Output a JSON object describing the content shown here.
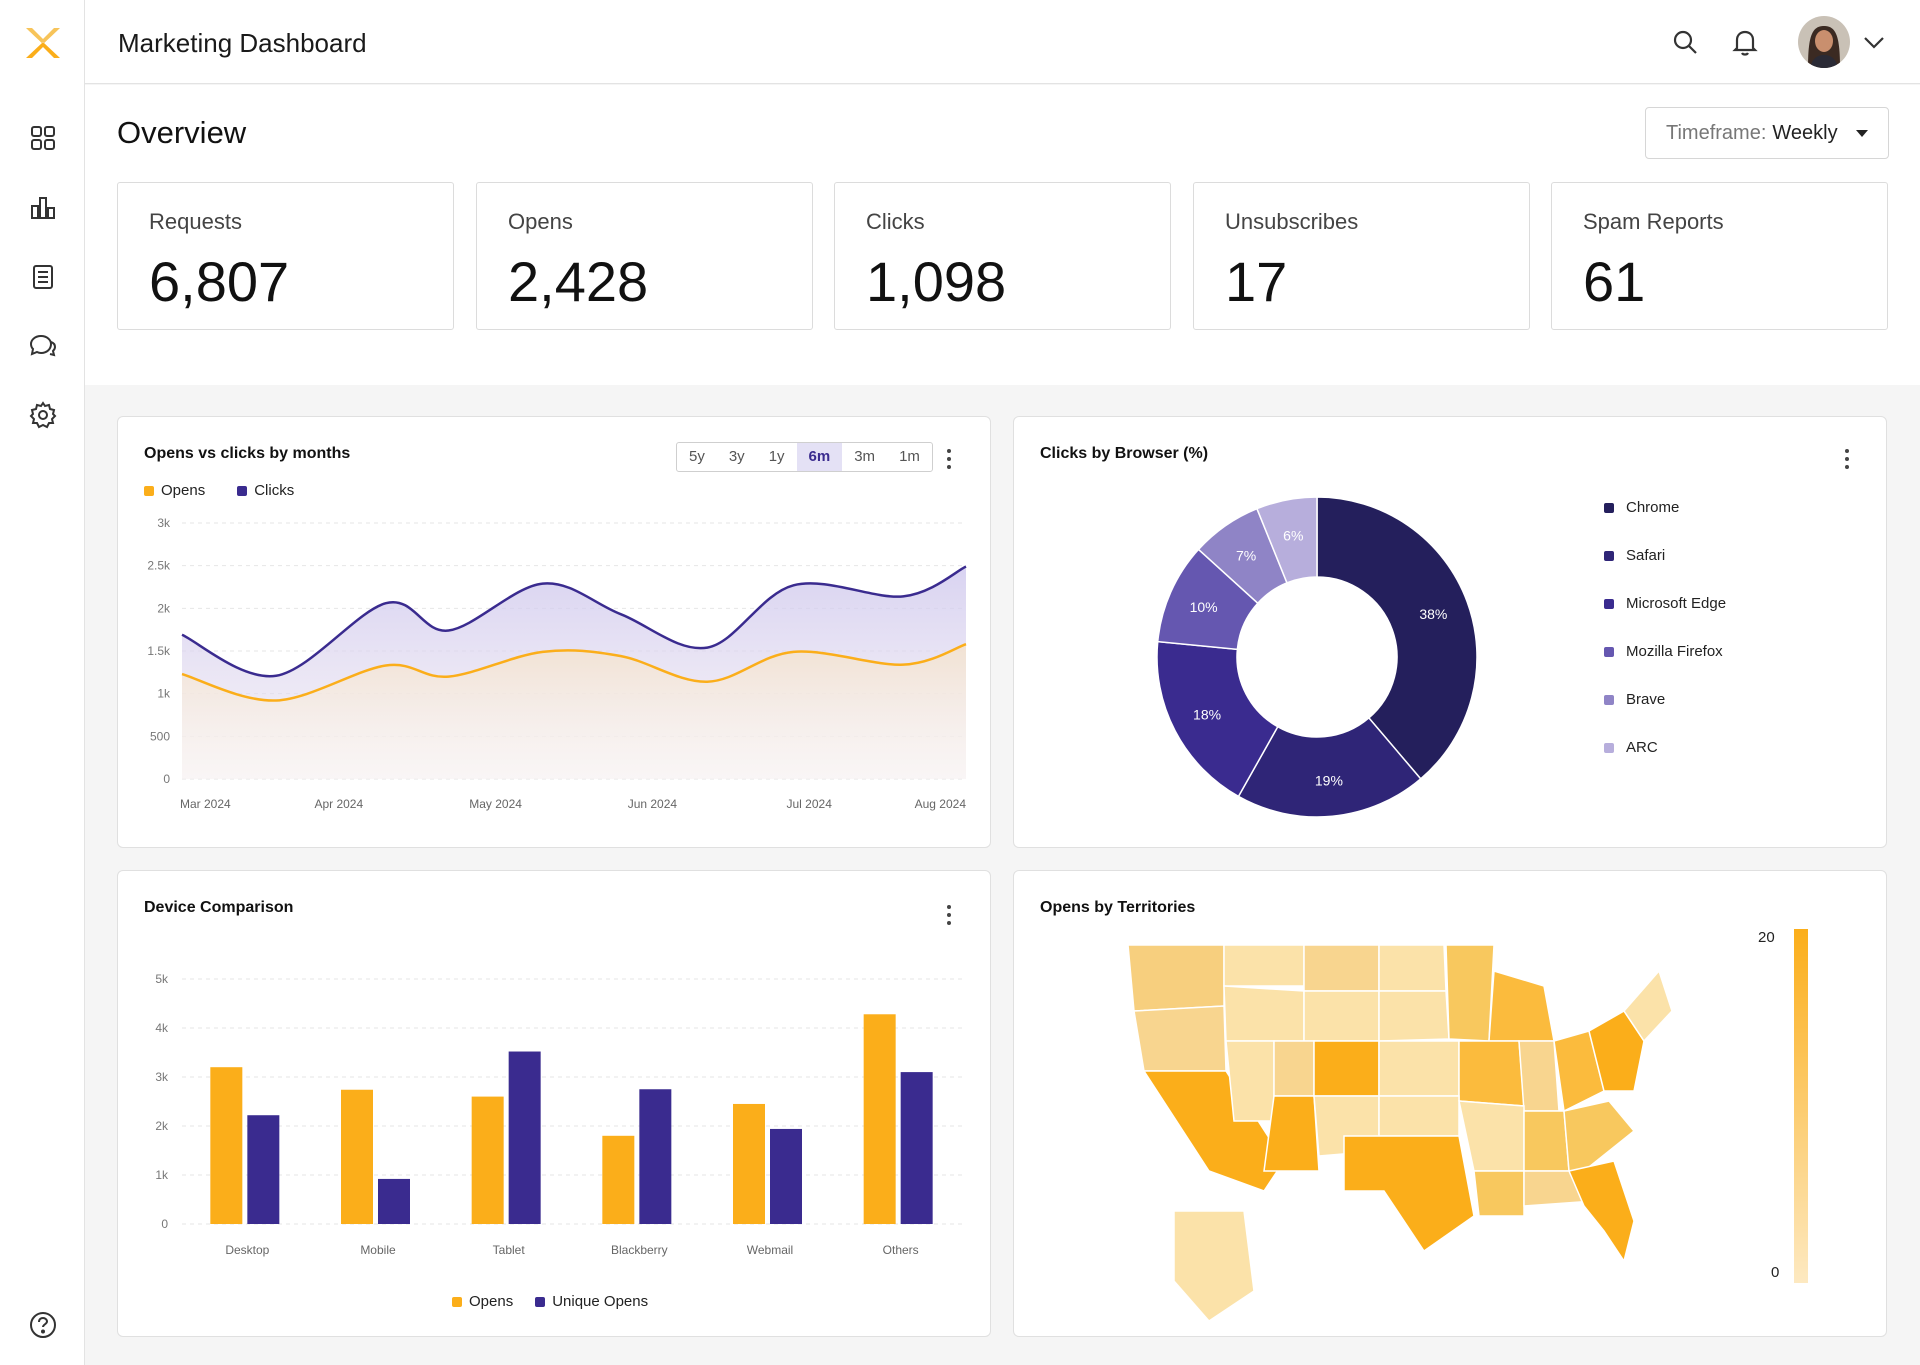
{
  "header": {
    "title": "Marketing Dashboard"
  },
  "overview": {
    "title": "Overview",
    "timeframe_label": "Timeframe:",
    "timeframe_value": "Weekly"
  },
  "kpis": [
    {
      "label": "Requests",
      "value": "6,807"
    },
    {
      "label": "Opens",
      "value": "2,428"
    },
    {
      "label": "Clicks",
      "value": "1,098"
    },
    {
      "label": "Unsubscribes",
      "value": "17"
    },
    {
      "label": "Spam Reports",
      "value": "61"
    }
  ],
  "sidebar": {
    "items": [
      "dashboard-icon",
      "bar-chart-icon",
      "document-icon",
      "chat-icon",
      "gear-icon"
    ],
    "help": "help-icon"
  },
  "colors": {
    "orange": "#FBAE1A",
    "purple": "#3A2B8F",
    "dark_purple": "#241F5C"
  },
  "line_card": {
    "title": "Opens vs clicks by months",
    "tabs": [
      "5y",
      "3y",
      "1y",
      "6m",
      "3m",
      "1m"
    ],
    "active_tab": "6m"
  },
  "browser_card": {
    "title": "Clicks by Browser (%)"
  },
  "device_card": {
    "title": "Device Comparison"
  },
  "map_card": {
    "title": "Opens by Territories",
    "scale_max": "20",
    "scale_min": "0"
  },
  "chart_data": [
    {
      "type": "line",
      "title": "Opens vs clicks by months",
      "x_ticks": [
        "Mar 2024",
        "Apr 2024",
        "May 2024",
        "Jun 2024",
        "Jul 2024",
        "Aug 2024"
      ],
      "y_ticks": [
        "0",
        "500",
        "1k",
        "1.5k",
        "2k",
        "2.5k",
        "3k"
      ],
      "ylim": [
        0,
        3000
      ],
      "grid": true,
      "legend": "top-left",
      "series": [
        {
          "name": "Opens",
          "color": "#FBAE1A",
          "points": [
            [
              0,
              1230
            ],
            [
              0.6,
              920
            ],
            [
              1.3,
              1330
            ],
            [
              1.7,
              1200
            ],
            [
              2.3,
              1490
            ],
            [
              2.8,
              1440
            ],
            [
              3.35,
              1140
            ],
            [
              3.9,
              1490
            ],
            [
              4.6,
              1340
            ],
            [
              5,
              1580
            ]
          ]
        },
        {
          "name": "Clicks",
          "color": "#3A2B8F",
          "points": [
            [
              0,
              1690
            ],
            [
              0.6,
              1210
            ],
            [
              1.3,
              2060
            ],
            [
              1.7,
              1740
            ],
            [
              2.3,
              2290
            ],
            [
              2.8,
              1930
            ],
            [
              3.35,
              1540
            ],
            [
              3.9,
              2270
            ],
            [
              4.6,
              2140
            ],
            [
              5,
              2490
            ]
          ]
        }
      ]
    },
    {
      "type": "pie",
      "title": "Clicks by Browser (%)",
      "labels": [
        "Chrome",
        "Safari",
        "Microsoft Edge",
        "Mozilla Firefox",
        "Brave",
        "ARC"
      ],
      "values": [
        38,
        19,
        18,
        10,
        7,
        6
      ],
      "colors": [
        "#241F5C",
        "#2F2577",
        "#3A2B8F",
        "#6557B0",
        "#8F84C6",
        "#B7AEDC"
      ],
      "legend": "right"
    },
    {
      "type": "bar",
      "title": "Device Comparison",
      "categories": [
        "Desktop",
        "Mobile",
        "Tablet",
        "Blackberry",
        "Webmail",
        "Others"
      ],
      "y_ticks": [
        "0",
        "1k",
        "2k",
        "3k",
        "4k",
        "5k"
      ],
      "ylim": [
        0,
        5000
      ],
      "legend": "bottom",
      "series": [
        {
          "name": "Opens",
          "color": "#FBAE1A",
          "values": [
            3200,
            2740,
            2600,
            1800,
            2450,
            4280
          ]
        },
        {
          "name": "Unique Opens",
          "color": "#3A2B8F",
          "values": [
            2220,
            920,
            3520,
            2750,
            1940,
            3100
          ]
        }
      ]
    }
  ]
}
